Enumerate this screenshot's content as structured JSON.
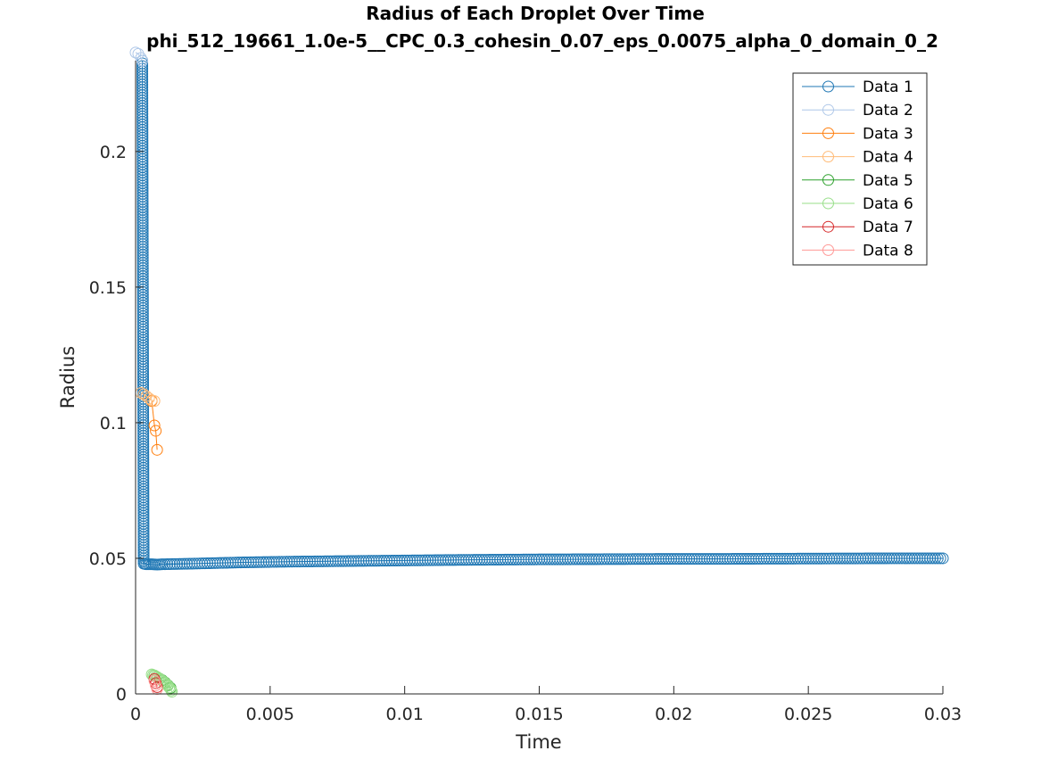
{
  "chart_data": {
    "type": "line",
    "title": "Radius of Each Droplet Over Time",
    "subtitle": "phi_512_19661_1.0e-5__CPC_0.3_cohesin_0.07_eps_0.0075_alpha_0_domain_0_2",
    "xlabel": "Time",
    "ylabel": "Radius",
    "xlim": [
      0,
      0.03
    ],
    "ylim": [
      0,
      0.2335
    ],
    "xticks": [
      0,
      0.005,
      0.01,
      0.015,
      0.02,
      0.025,
      0.03
    ],
    "xtick_labels": [
      "0",
      "0.005",
      "0.01",
      "0.015",
      "0.02",
      "0.025",
      "0.03"
    ],
    "yticks": [
      0,
      0.05,
      0.1,
      0.15,
      0.2
    ],
    "ytick_labels": [
      "0",
      "0.05",
      "0.1",
      "0.15",
      "0.2"
    ],
    "grid": false,
    "legend_position": "top-right",
    "series": [
      {
        "name": "Data 1",
        "color": "#1f77b4",
        "dense": true,
        "x": [
          0.00025,
          0.0003,
          0.0004,
          0.0006,
          0.0008,
          0.001,
          0.002,
          0.004,
          0.006,
          0.008,
          0.01,
          0.012,
          0.015,
          0.018,
          0.02,
          0.022,
          0.025,
          0.028,
          0.03
        ],
        "y": [
          0.2335,
          0.048,
          0.0478,
          0.0478,
          0.0477,
          0.0478,
          0.048,
          0.0485,
          0.0488,
          0.049,
          0.0492,
          0.0494,
          0.0496,
          0.0497,
          0.0498,
          0.0498,
          0.0499,
          0.05,
          0.05
        ]
      },
      {
        "name": "Data 2",
        "color": "#aec7e8",
        "dense": false,
        "x": [
          0,
          0.0001,
          0.0002,
          0.00025
        ],
        "y": [
          0.2365,
          0.236,
          0.2345,
          0.2335
        ]
      },
      {
        "name": "Data 3",
        "color": "#ff7f0e",
        "dense": false,
        "x": [
          0.0006,
          0.0007,
          0.00075,
          0.0008
        ],
        "y": [
          0.108,
          0.099,
          0.097,
          0.09
        ]
      },
      {
        "name": "Data 4",
        "color": "#ffbb78",
        "dense": false,
        "x": [
          0.0002,
          0.0003,
          0.0004,
          0.0005,
          0.0006,
          0.0007
        ],
        "y": [
          0.111,
          0.1105,
          0.1098,
          0.109,
          0.1083,
          0.108
        ]
      },
      {
        "name": "Data 5",
        "color": "#2ca02c",
        "dense": false,
        "x": [
          0.0007,
          0.0008,
          0.0009,
          0.001,
          0.0011,
          0.0012,
          0.0013
        ],
        "y": [
          0.0068,
          0.0062,
          0.0056,
          0.005,
          0.0042,
          0.0032,
          0.0022
        ]
      },
      {
        "name": "Data 6",
        "color": "#98df8a",
        "dense": true,
        "x": [
          0.0006,
          0.0007,
          0.0008,
          0.0009,
          0.001,
          0.0011,
          0.0012,
          0.0013,
          0.00135
        ],
        "y": [
          0.0072,
          0.0068,
          0.0062,
          0.0055,
          0.0048,
          0.004,
          0.003,
          0.0018,
          0.0008
        ]
      },
      {
        "name": "Data 7",
        "color": "#d62728",
        "dense": false,
        "x": [
          0.0007,
          0.00075,
          0.0008
        ],
        "y": [
          0.0055,
          0.004,
          0.0025
        ]
      },
      {
        "name": "Data 8",
        "color": "#ff9896",
        "dense": false,
        "x": [
          0.0007,
          0.00075,
          0.0008
        ],
        "y": [
          0.0048,
          0.0032,
          0.0018
        ]
      }
    ]
  }
}
